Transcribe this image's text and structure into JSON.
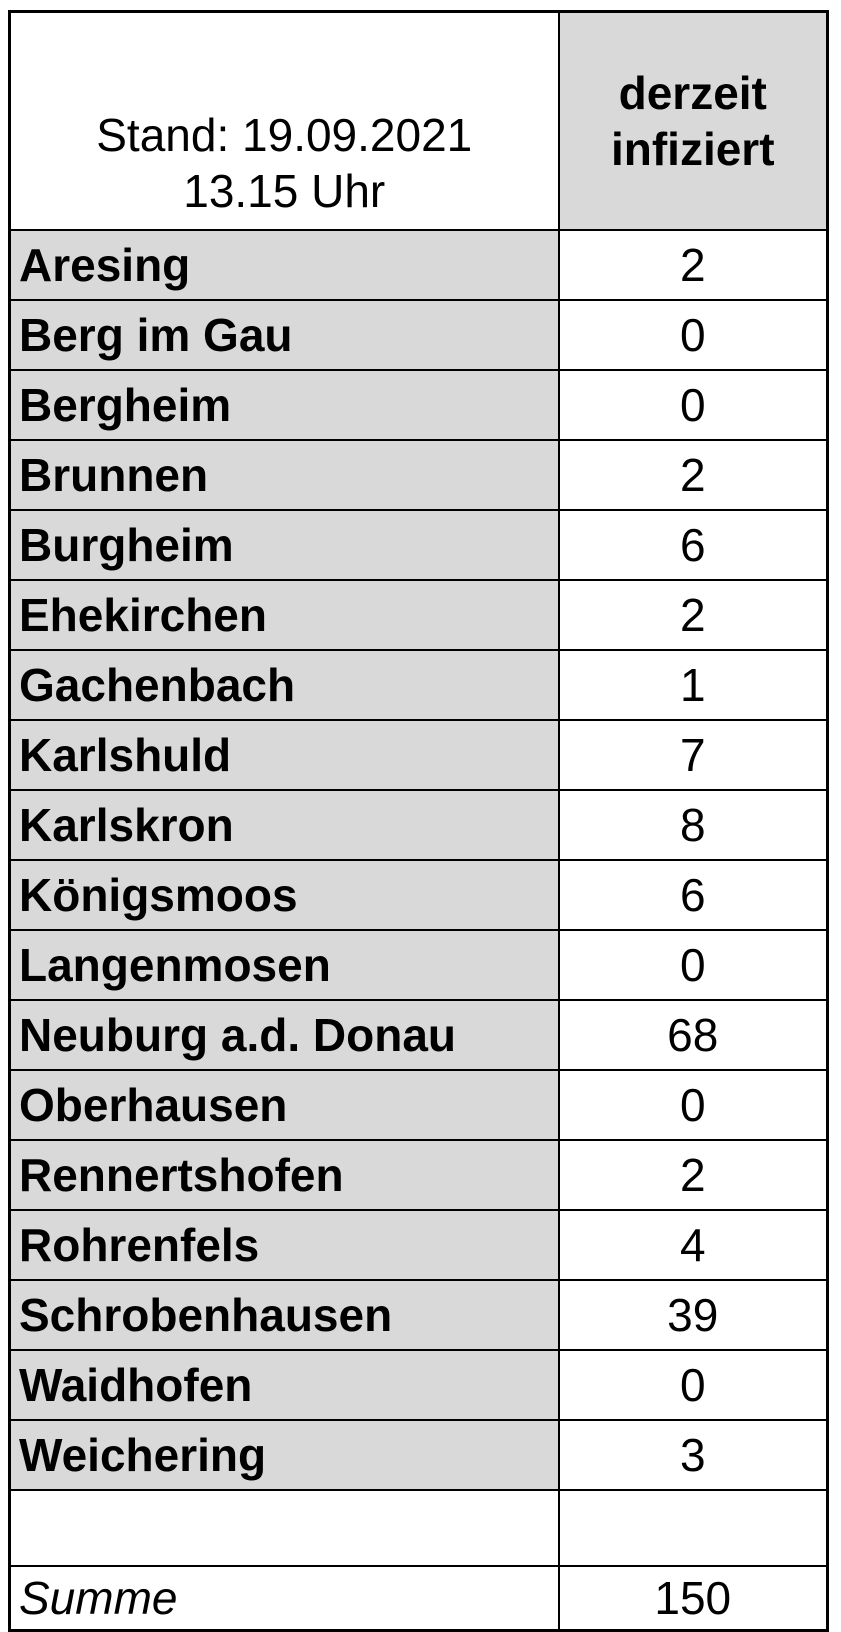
{
  "header": {
    "stand_line1": "Stand: 19.09.2021",
    "stand_line2": "13.15 Uhr",
    "value_col_line1": "derzeit",
    "value_col_line2": "infiziert"
  },
  "chart_data": {
    "type": "table",
    "title": "Stand: 19.09.2021 13.15 Uhr",
    "columns": [
      "Stand: 19.09.2021 13.15 Uhr",
      "derzeit infiziert"
    ],
    "rows": [
      [
        "Aresing",
        2
      ],
      [
        "Berg im Gau",
        0
      ],
      [
        "Bergheim",
        0
      ],
      [
        "Brunnen",
        2
      ],
      [
        "Burgheim",
        6
      ],
      [
        "Ehekirchen",
        2
      ],
      [
        "Gachenbach",
        1
      ],
      [
        "Karlshuld",
        7
      ],
      [
        "Karlskron",
        8
      ],
      [
        "Königsmoos",
        6
      ],
      [
        "Langenmosen",
        0
      ],
      [
        "Neuburg a.d. Donau",
        68
      ],
      [
        "Oberhausen",
        0
      ],
      [
        "Rennertshofen",
        2
      ],
      [
        "Rohrenfels",
        4
      ],
      [
        "Schrobenhausen",
        39
      ],
      [
        "Waidhofen",
        0
      ],
      [
        "Weichering",
        3
      ]
    ],
    "summary": {
      "label": "Summe",
      "value": 150
    }
  },
  "colors": {
    "row_fill": "#d9d9d9",
    "border": "#000000",
    "background": "#ffffff",
    "text": "#000000"
  }
}
